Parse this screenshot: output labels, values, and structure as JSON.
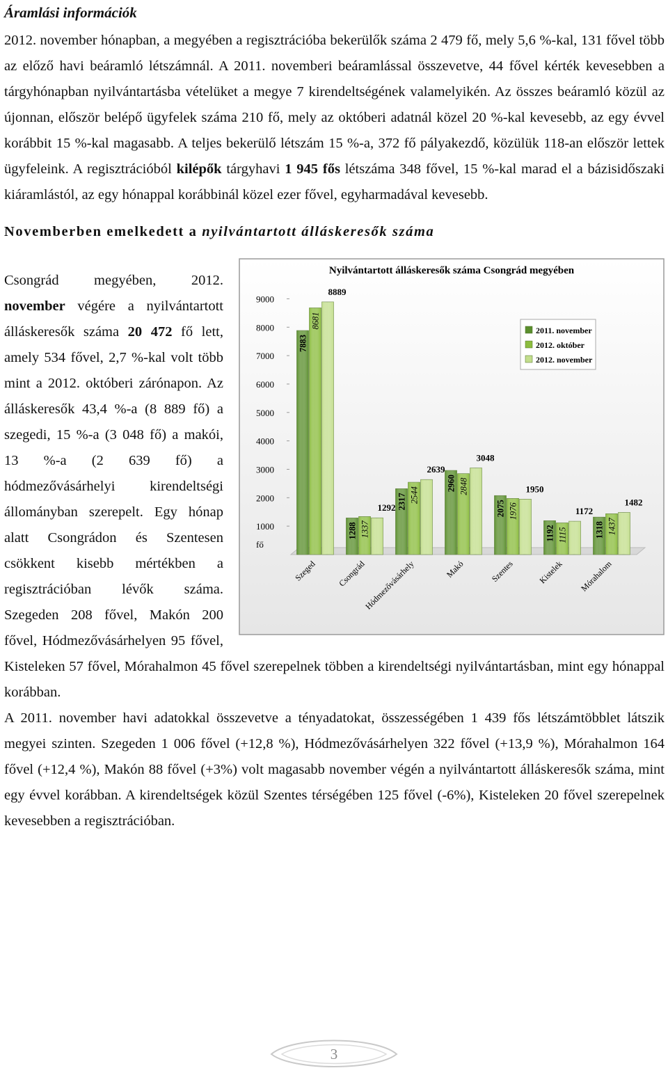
{
  "heading": "Áramlási információk",
  "paragraph_1": {
    "runs": [
      {
        "text": "2012. november hónapban, a megyében a regisztrációba bekerülők száma 2 479 fő, mely 5,6 %-kal, 131 fővel több az előző havi beáramló létszámnál. A 2011. novemberi beáramlással összevetve, 44 fővel kérték kevesebben a tárgyhónapban nyilvántartásba vételüket a megye 7 kirendeltségének valamelyikén. Az összes beáramló közül az újonnan, először belépő ügyfelek száma 210 fő, mely az októberi adatnál közel 20 %-kal kevesebb, az egy évvel korábbit 15 %-kal magasabb. A teljes bekerülő létszám 15 %-a, 372 fő pályakezdő, közülük 118-an először lettek ügyfeleink. A regisztrációból "
      },
      {
        "text": "kilépők",
        "bold": true
      },
      {
        "text": " tárgyhavi "
      },
      {
        "text": "1 945 fős",
        "bold": true
      },
      {
        "text": " létszáma 348 fővel, 15 %-kal marad el a bázisidőszaki kiáramlástól, az egy hónappal korábbinál közel ezer fővel, egyharmadával kevesebb."
      }
    ]
  },
  "subheading": {
    "runs": [
      {
        "text": "Novemberben emelkedett a ",
        "bold": true
      },
      {
        "text": "nyilvántartott álláskeresők száma",
        "bold": true,
        "italic": true
      }
    ]
  },
  "paragraph_2": {
    "runs": [
      {
        "text": "Csongrád megyében, 2012. "
      },
      {
        "text": "november",
        "bold": true
      },
      {
        "text": " végére a nyilvántartott álláskeresők száma "
      },
      {
        "text": "20 472",
        "bold": true
      },
      {
        "text": " fő lett, amely 534 fővel, 2,7 %-kal volt több mint a 2012. októberi zárónapon. Az álláskeresők 43,4 %-a (8 889 fő) a szegedi, 15 %-a (3 048 fő) a makói, 13 %-a (2 639 fő) a hódmezővásárhelyi kirendeltségi állományban szerepelt. Egy hónap alatt Csongrádon és Szentesen csökkent kisebb mértékben a regisztrációban lévők száma. Szegeden 208 fővel, Makón 200 fővel, Hódmezővásárhelyen 95 fővel, Kisteleken 57 fővel, Mórahalmon 45 fővel szerepelnek többen a kirendeltségi nyilvántartásban, mint egy hónappal korábban."
      }
    ]
  },
  "paragraph_3": {
    "runs": [
      {
        "text": "A 2011. november havi adatokkal összevetve a tényadatokat, összességében 1 439 fős létszámtöbblet látszik megyei szinten. Szegeden 1 006 fővel (+12,8 %), Hódmezővásárhelyen 322 fővel (+13,9 %), Mórahalmon 164 fővel (+12,4 %), Makón 88 fővel (+3%) volt magasabb november végén a nyilvántartott álláskeresők száma, mint egy évvel korábban. A kirendeltségek közül Szentes térségében 125 fővel (-6%), Kisteleken 20 fővel szerepelnek kevesebben a regisztrációban."
      }
    ]
  },
  "page_number": "3",
  "chart_data": {
    "type": "bar",
    "title": "Nyilvántartott álláskeresők száma Csongrád megyében",
    "y_label": "fő",
    "categories": [
      "Szeged",
      "Csongrád",
      "Hódmezővásárhely",
      "Makó",
      "Szentes",
      "Kistelek",
      "Mórahalom"
    ],
    "series": [
      {
        "name": "2011. november",
        "color": "#5b8f2e",
        "values": [
          7883,
          1288,
          2317,
          2960,
          2075,
          1192,
          1318
        ]
      },
      {
        "name": "2012. október",
        "color": "#8cbd3f",
        "values": [
          8681,
          1337,
          2544,
          2848,
          1976,
          1115,
          1437
        ]
      },
      {
        "name": "2012. november",
        "color": "#c3de8d",
        "values": [
          8889,
          1292,
          2639,
          3048,
          1950,
          1172,
          1482
        ]
      }
    ],
    "ylim": [
      0,
      9500
    ],
    "yticks": [
      1000,
      2000,
      3000,
      4000,
      5000,
      6000,
      7000,
      8000,
      9000
    ],
    "legend": "upper right"
  }
}
